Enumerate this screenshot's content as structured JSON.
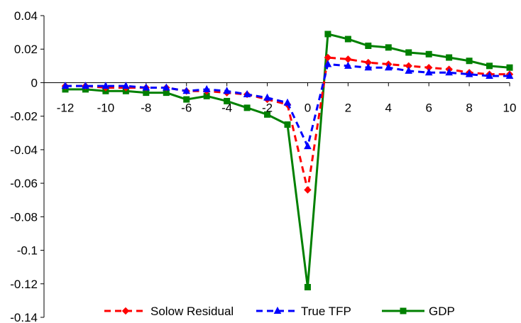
{
  "chart_data": {
    "type": "line",
    "title": "",
    "xlabel": "",
    "ylabel": "",
    "x": [
      -12,
      -11,
      -10,
      -9,
      -8,
      -7,
      -6,
      -5,
      -4,
      -3,
      -2,
      -1,
      0,
      1,
      2,
      3,
      4,
      5,
      6,
      7,
      8,
      9,
      10
    ],
    "xlim": [
      -12,
      10
    ],
    "ylim": [
      -0.14,
      0.04
    ],
    "x_ticks": [
      -12,
      -10,
      -8,
      -6,
      -4,
      -2,
      0,
      2,
      4,
      6,
      8,
      10
    ],
    "y_ticks": [
      0.04,
      0.02,
      0,
      -0.02,
      -0.04,
      -0.06,
      -0.08,
      -0.1,
      -0.12,
      -0.14
    ],
    "x_tick_labels": [
      "-12",
      "-10",
      "-8",
      "-6",
      "-4",
      "-2",
      "0",
      "2",
      "4",
      "6",
      "8",
      "10"
    ],
    "y_tick_labels": [
      "0.04",
      "0.02",
      "0",
      "-0.02",
      "-0.04",
      "-0.06",
      "-0.08",
      "-0.1",
      "-0.12",
      "-0.14"
    ],
    "grid": false,
    "legend_position": "bottom",
    "series": [
      {
        "name": "Solow Residual",
        "color": "#ff0000",
        "line_style": "dashed",
        "marker": "diamond",
        "values": [
          -0.002,
          -0.002,
          -0.003,
          -0.003,
          -0.003,
          -0.003,
          -0.005,
          -0.005,
          -0.006,
          -0.007,
          -0.01,
          -0.013,
          -0.064,
          0.015,
          0.014,
          0.012,
          0.011,
          0.01,
          0.009,
          0.008,
          0.006,
          0.005,
          0.005
        ]
      },
      {
        "name": "True TFP",
        "color": "#0000ff",
        "line_style": "dashed",
        "marker": "triangle",
        "values": [
          -0.002,
          -0.002,
          -0.002,
          -0.002,
          -0.003,
          -0.003,
          -0.005,
          -0.004,
          -0.005,
          -0.007,
          -0.009,
          -0.012,
          -0.038,
          0.011,
          0.01,
          0.009,
          0.009,
          0.007,
          0.006,
          0.006,
          0.005,
          0.004,
          0.004
        ]
      },
      {
        "name": "GDP",
        "color": "#008000",
        "line_style": "solid",
        "marker": "square",
        "values": [
          -0.004,
          -0.004,
          -0.005,
          -0.005,
          -0.006,
          -0.006,
          -0.01,
          -0.008,
          -0.011,
          -0.015,
          -0.019,
          -0.025,
          -0.122,
          0.029,
          0.026,
          0.022,
          0.021,
          0.018,
          0.017,
          0.015,
          0.013,
          0.01,
          0.009
        ]
      }
    ]
  }
}
